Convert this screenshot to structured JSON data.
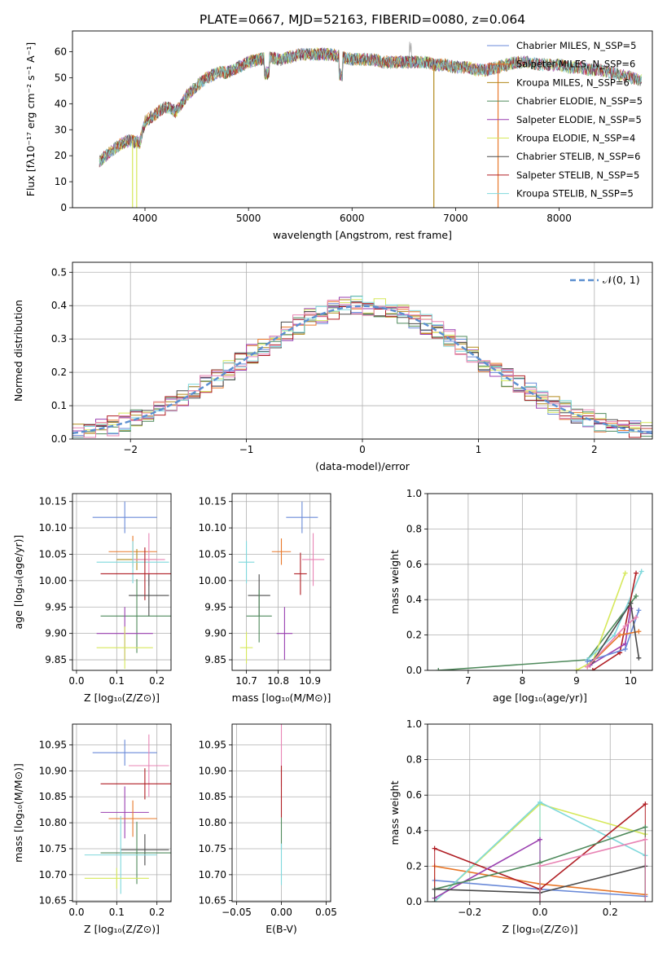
{
  "figure": {
    "title": "PLATE=0667, MJD=52163, FIBERID=0080, z=0.064"
  },
  "colors": {
    "chabrier_miles": "#6a8ad8",
    "salpeter_miles": "#e8782a",
    "kroupa_miles": "#b28a1c",
    "chabrier_elodie": "#4f8a5c",
    "salpeter_elodie": "#9a3fb0",
    "kroupa_elodie": "#d6e85a",
    "chabrier_stelib": "#4a4a4a",
    "salpeter_stelib": "#b01e24",
    "kroupa_stelib": "#7fd8dc",
    "pink": "#e884b4",
    "normal": "#5b8fd0",
    "spectrum": "#8a8a8a"
  },
  "chart_data": [
    {
      "id": "spectrum",
      "type": "line",
      "xlabel": "wavelength [Angstrom, rest frame]",
      "ylabel": "Flux [fλ10⁻¹⁷ erg cm⁻² s⁻¹ A⁻¹]",
      "xlim": [
        3300,
        8900
      ],
      "ylim": [
        0,
        68
      ],
      "xticks": [
        4000,
        5000,
        6000,
        7000,
        8000
      ],
      "yticks": [
        0,
        10,
        20,
        30,
        40,
        50,
        60
      ],
      "legend_position": "top-right",
      "legend": [
        "Chabrier MILES, N_SSP=5",
        "Salpeter MILES, N_SSP=6",
        "Kroupa MILES, N_SSP=6",
        "Chabrier ELODIE, N_SSP=5",
        "Salpeter ELODIE, N_SSP=5",
        "Kroupa ELODIE, N_SSP=4",
        "Chabrier STELIB, N_SSP=6",
        "Salpeter STELIB, N_SSP=5",
        "Kroupa STELIB, N_SSP=5"
      ],
      "continuum": {
        "x": [
          3560,
          3650,
          3750,
          3850,
          3950,
          4000,
          4100,
          4200,
          4300,
          4400,
          4500,
          4600,
          4700,
          4800,
          4900,
          5000,
          5100,
          5200,
          5300,
          5400,
          5500,
          5600,
          5700,
          5800,
          5900,
          6000,
          6100,
          6200,
          6300,
          6400,
          6500,
          6600,
          6700,
          6800,
          6900,
          7000,
          7100,
          7200,
          7300,
          7400,
          7500,
          7600,
          7700,
          7800,
          7900,
          8000,
          8100,
          8200,
          8300,
          8400,
          8500,
          8600,
          8700,
          8800
        ],
        "y": [
          18,
          21,
          24,
          26,
          25,
          33,
          36,
          39,
          37,
          43,
          47,
          50,
          52,
          52,
          54,
          56,
          57,
          58,
          57,
          58,
          59,
          59,
          59,
          59,
          58,
          57,
          57,
          57,
          56,
          56,
          56,
          56,
          56,
          55,
          55,
          54,
          54,
          53,
          53,
          54,
          55,
          56,
          56,
          55,
          55,
          55,
          54,
          54,
          53,
          53,
          52,
          51,
          50,
          49
        ]
      },
      "drops": [
        {
          "x": 3880,
          "y": 0
        },
        {
          "x": 3920,
          "y": 0
        },
        {
          "x": 6790,
          "y": 0
        },
        {
          "x": 7410,
          "y": 0
        }
      ]
    },
    {
      "id": "residuals",
      "type": "line",
      "xlabel": "(data-model)/error",
      "ylabel": "Normed distribution",
      "xlim": [
        -2.5,
        2.5
      ],
      "ylim": [
        0,
        0.53
      ],
      "xticks": [
        -2,
        -1,
        0,
        1,
        2
      ],
      "yticks": [
        0.0,
        0.1,
        0.2,
        0.3,
        0.4,
        0.5
      ],
      "legend_position": "top-right",
      "legend": [
        "𝒩(0, 1)"
      ],
      "normal": {
        "mean": 0,
        "sigma": 1
      }
    },
    {
      "id": "age_vs_Z",
      "type": "scatter",
      "xlabel": "Z [log₁₀(Z/Z⊙)]",
      "ylabel": "age  [log₁₀(age/yr)]",
      "xlim": [
        -0.01,
        0.235
      ],
      "ylim": [
        9.83,
        10.165
      ],
      "xticks": [
        0.0,
        0.1,
        0.2
      ],
      "yticks": [
        9.85,
        9.9,
        9.95,
        10.0,
        10.05,
        10.1,
        10.15
      ],
      "points": [
        {
          "x": 0.12,
          "y": 10.12,
          "xerr": 0.08,
          "yerr": 0.03,
          "series": "chabrier_miles"
        },
        {
          "x": 0.14,
          "y": 10.055,
          "xerr": 0.06,
          "yerr": 0.03,
          "series": "salpeter_miles"
        },
        {
          "x": 0.15,
          "y": 10.04,
          "xerr": 0.05,
          "yerr": 0.02,
          "series": "kroupa_miles"
        },
        {
          "x": 0.18,
          "y": 10.04,
          "xerr": 0.04,
          "yerr": 0.05,
          "series": "pink"
        },
        {
          "x": 0.14,
          "y": 10.035,
          "xerr": 0.09,
          "yerr": 0.04,
          "series": "kroupa_stelib"
        },
        {
          "x": 0.17,
          "y": 10.013,
          "xerr": 0.11,
          "yerr": 0.05,
          "series": "salpeter_stelib"
        },
        {
          "x": 0.18,
          "y": 9.972,
          "xerr": 0.05,
          "yerr": 0.04,
          "series": "chabrier_stelib"
        },
        {
          "x": 0.15,
          "y": 9.933,
          "xerr": 0.09,
          "yerr": 0.07,
          "series": "chabrier_elodie"
        },
        {
          "x": 0.12,
          "y": 9.9,
          "xerr": 0.07,
          "yerr": 0.05,
          "series": "salpeter_elodie"
        },
        {
          "x": 0.12,
          "y": 9.873,
          "xerr": 0.07,
          "yerr": 0.04,
          "series": "kroupa_elodie"
        }
      ]
    },
    {
      "id": "age_vs_mass",
      "type": "scatter",
      "xlabel": "mass [log₁₀(M/M⊙)]",
      "ylabel": "",
      "xlim": [
        10.655,
        10.965
      ],
      "ylim": [
        9.83,
        10.165
      ],
      "xticks": [
        10.7,
        10.8,
        10.9
      ],
      "yticks": [
        9.85,
        9.9,
        9.95,
        10.0,
        10.05,
        10.1,
        10.15
      ],
      "points": [
        {
          "x": 10.875,
          "y": 10.12,
          "xerr": 0.05,
          "yerr": 0.03,
          "series": "chabrier_miles"
        },
        {
          "x": 10.81,
          "y": 10.055,
          "xerr": 0.03,
          "yerr": 0.025,
          "series": "salpeter_miles"
        },
        {
          "x": 10.91,
          "y": 10.04,
          "xerr": 0.035,
          "yerr": 0.05,
          "series": "pink"
        },
        {
          "x": 10.7,
          "y": 10.035,
          "xerr": 0.025,
          "yerr": 0.04,
          "series": "kroupa_stelib"
        },
        {
          "x": 10.87,
          "y": 10.013,
          "xerr": 0.02,
          "yerr": 0.04,
          "series": "salpeter_stelib"
        },
        {
          "x": 10.74,
          "y": 9.972,
          "xerr": 0.035,
          "yerr": 0.04,
          "series": "chabrier_stelib"
        },
        {
          "x": 10.74,
          "y": 9.933,
          "xerr": 0.04,
          "yerr": 0.05,
          "series": "chabrier_elodie"
        },
        {
          "x": 10.82,
          "y": 9.9,
          "xerr": 0.025,
          "yerr": 0.05,
          "series": "salpeter_elodie"
        },
        {
          "x": 10.7,
          "y": 9.873,
          "xerr": 0.02,
          "yerr": 0.03,
          "series": "kroupa_elodie"
        }
      ]
    },
    {
      "id": "weight_vs_age",
      "type": "line",
      "xlabel": "age  [log₁₀(age/yr)]",
      "ylabel": "mass weight",
      "xlim": [
        6.25,
        10.4
      ],
      "ylim": [
        0.0,
        1.0
      ],
      "xticks": [
        7,
        8,
        9,
        10
      ],
      "yticks": [
        0.0,
        0.2,
        0.4,
        0.6,
        0.8,
        1.0
      ],
      "series": [
        {
          "series": "chabrier_elodie",
          "x": [
            6.45,
            9.2,
            10.1
          ],
          "y": [
            0.0,
            0.06,
            0.42
          ]
        },
        {
          "series": "kroupa_elodie",
          "x": [
            9.0,
            9.3,
            9.9
          ],
          "y": [
            0.0,
            0.05,
            0.55
          ]
        },
        {
          "series": "kroupa_stelib",
          "x": [
            9.2,
            9.7,
            10.2
          ],
          "y": [
            0.06,
            0.2,
            0.56
          ]
        },
        {
          "series": "salpeter_stelib",
          "x": [
            9.3,
            9.8,
            10.1
          ],
          "y": [
            0.0,
            0.1,
            0.55
          ]
        },
        {
          "series": "salpeter_elodie",
          "x": [
            9.25,
            9.9,
            10.0
          ],
          "y": [
            0.03,
            0.15,
            0.35
          ]
        },
        {
          "series": "chabrier_miles",
          "x": [
            9.2,
            9.9,
            10.15
          ],
          "y": [
            0.05,
            0.12,
            0.34
          ]
        },
        {
          "series": "salpeter_miles",
          "x": [
            9.2,
            9.8,
            10.15
          ],
          "y": [
            0.02,
            0.2,
            0.22
          ]
        },
        {
          "series": "chabrier_stelib",
          "x": [
            9.3,
            10.0,
            10.15
          ],
          "y": [
            0.05,
            0.38,
            0.07
          ]
        },
        {
          "series": "pink",
          "x": [
            9.2,
            9.9,
            10.1
          ],
          "y": [
            0.02,
            0.25,
            0.3
          ]
        }
      ]
    },
    {
      "id": "mass_vs_Z",
      "type": "scatter",
      "xlabel": "Z [log₁₀(Z/Z⊙)]",
      "ylabel": "mass [log₁₀(M/M⊙)]",
      "xlim": [
        -0.01,
        0.235
      ],
      "ylim": [
        10.648,
        10.99
      ],
      "xticks": [
        0.0,
        0.1,
        0.2
      ],
      "yticks": [
        10.65,
        10.7,
        10.75,
        10.8,
        10.85,
        10.9,
        10.95
      ],
      "points": [
        {
          "x": 0.12,
          "y": 10.935,
          "xerr": 0.08,
          "yerr": 0.025,
          "series": "chabrier_miles"
        },
        {
          "x": 0.18,
          "y": 10.91,
          "xerr": 0.05,
          "yerr": 0.06,
          "series": "pink"
        },
        {
          "x": 0.17,
          "y": 10.875,
          "xerr": 0.11,
          "yerr": 0.03,
          "series": "salpeter_stelib"
        },
        {
          "x": 0.12,
          "y": 10.82,
          "xerr": 0.06,
          "yerr": 0.05,
          "series": "salpeter_elodie"
        },
        {
          "x": 0.14,
          "y": 10.808,
          "xerr": 0.06,
          "yerr": 0.035,
          "series": "salpeter_miles"
        },
        {
          "x": 0.17,
          "y": 10.748,
          "xerr": 0.06,
          "yerr": 0.03,
          "series": "chabrier_stelib"
        },
        {
          "x": 0.15,
          "y": 10.742,
          "xerr": 0.09,
          "yerr": 0.06,
          "series": "chabrier_elodie"
        },
        {
          "x": 0.11,
          "y": 10.738,
          "xerr": 0.09,
          "yerr": 0.075,
          "series": "kroupa_stelib"
        },
        {
          "x": 0.1,
          "y": 10.693,
          "xerr": 0.08,
          "yerr": 0.02,
          "series": "kroupa_elodie"
        }
      ]
    },
    {
      "id": "mass_vs_ebv",
      "type": "scatter",
      "xlabel": "E(B-V)",
      "ylabel": "",
      "xlim": [
        -0.055,
        0.055
      ],
      "ylim": [
        10.648,
        10.99
      ],
      "xticks": [
        -0.05,
        0.0,
        0.05
      ],
      "yticks": [
        10.65,
        10.7,
        10.75,
        10.8,
        10.85,
        10.9,
        10.95
      ],
      "points": [
        {
          "x": 0.0,
          "y": 10.93,
          "xerr": 0,
          "yerr": 0.06,
          "series": "pink"
        },
        {
          "x": 0.0,
          "y": 10.86,
          "xerr": 0,
          "yerr": 0.05,
          "series": "salpeter_stelib"
        },
        {
          "x": 0.0,
          "y": 10.78,
          "xerr": 0,
          "yerr": 0.03,
          "series": "chabrier_elodie"
        },
        {
          "x": 0.0,
          "y": 10.72,
          "xerr": 0,
          "yerr": 0.04,
          "series": "kroupa_stelib"
        }
      ]
    },
    {
      "id": "weight_vs_Z",
      "type": "line",
      "xlabel": "Z [log₁₀(Z/Z⊙)]",
      "ylabel": "mass weight",
      "xlim": [
        -0.32,
        0.32
      ],
      "ylim": [
        0.0,
        1.0
      ],
      "xticks": [
        -0.2,
        0.0,
        0.2
      ],
      "yticks": [
        0.0,
        0.2,
        0.4,
        0.6,
        0.8,
        1.0
      ],
      "series": [
        {
          "series": "chabrier_miles",
          "x": [
            -0.3,
            0.0,
            0.3
          ],
          "y": [
            0.12,
            0.07,
            0.03
          ]
        },
        {
          "series": "salpeter_miles",
          "x": [
            -0.3,
            0.0,
            0.3
          ],
          "y": [
            0.2,
            0.1,
            0.04
          ]
        },
        {
          "series": "kroupa_elodie",
          "x": [
            -0.3,
            0.0,
            0.3
          ],
          "y": [
            0.0,
            0.55,
            0.38
          ]
        },
        {
          "series": "kroupa_stelib",
          "x": [
            -0.3,
            0.0,
            0.3
          ],
          "y": [
            0.0,
            0.56,
            0.26
          ]
        },
        {
          "series": "salpeter_stelib",
          "x": [
            -0.3,
            0.0,
            0.3
          ],
          "y": [
            0.3,
            0.07,
            0.55
          ]
        },
        {
          "series": "salpeter_elodie",
          "x": [
            -0.3,
            0.0
          ],
          "y": [
            0.02,
            0.35
          ]
        },
        {
          "series": "chabrier_elodie",
          "x": [
            -0.3,
            0.0,
            0.3
          ],
          "y": [
            0.07,
            0.22,
            0.42
          ]
        },
        {
          "series": "chabrier_stelib",
          "x": [
            -0.3,
            0.0,
            0.3
          ],
          "y": [
            0.07,
            0.05,
            0.2
          ]
        },
        {
          "series": "pink",
          "x": [
            0.0,
            0.3
          ],
          "y": [
            0.2,
            0.35
          ]
        }
      ]
    }
  ]
}
